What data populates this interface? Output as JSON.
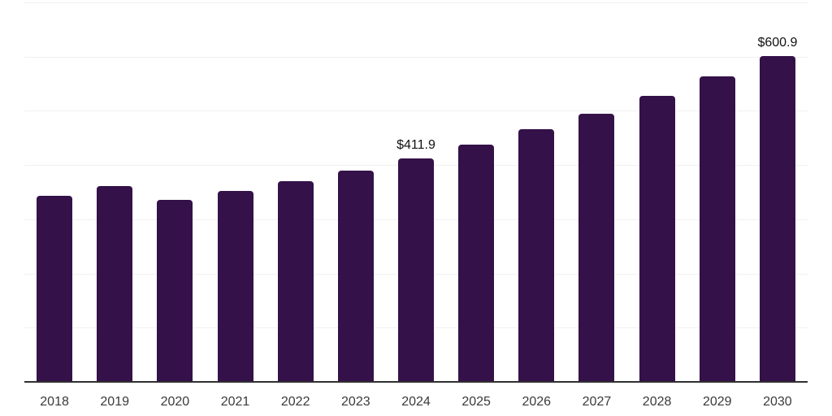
{
  "chart_data": {
    "type": "bar",
    "title": "",
    "xlabel": "",
    "ylabel": "",
    "categories": [
      "2018",
      "2019",
      "2020",
      "2021",
      "2022",
      "2023",
      "2024",
      "2025",
      "2026",
      "2027",
      "2028",
      "2029",
      "2030"
    ],
    "values": [
      343,
      362,
      336,
      352,
      370,
      390,
      411.9,
      438,
      466,
      495,
      528,
      564,
      600.9
    ],
    "point_labels": [
      "",
      "",
      "",
      "",
      "",
      "",
      "$411.9",
      "",
      "",
      "",
      "",
      "",
      "$600.9"
    ],
    "ylim": [
      0,
      700
    ],
    "gridline_values": [
      100,
      200,
      300,
      400,
      500,
      600,
      700
    ],
    "grid": "on",
    "legend": "none",
    "colors": {
      "bar": "#341149",
      "axis_line": "#2f2f2f",
      "gridline": "#f0f0f0",
      "year_label": "#3a3a3a",
      "value_label": "#111111",
      "background": "#ffffff"
    }
  }
}
